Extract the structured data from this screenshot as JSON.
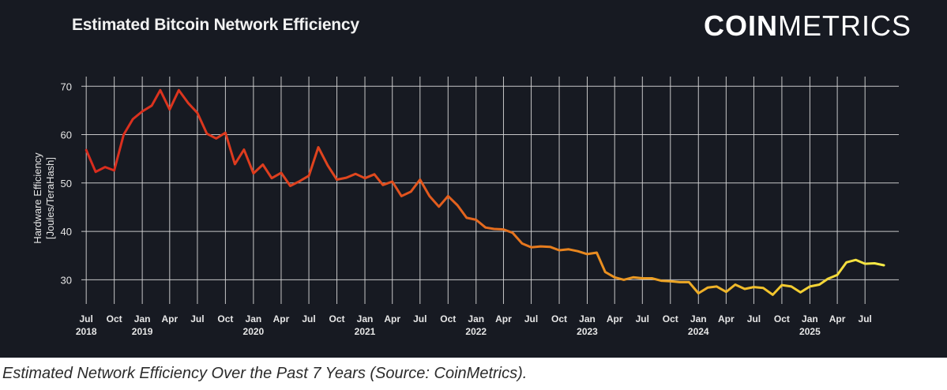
{
  "header": {
    "title": "Estimated Bitcoin Network Efficiency",
    "logo_bold": "COIN",
    "logo_light": "METRICS"
  },
  "caption": "Estimated Network Efficiency Over the Past 7 Years (Source: CoinMetrics).",
  "colors": {
    "background": "#171a22",
    "grid": "#d9d9d9",
    "axis_text": "#e6e6e6",
    "line_gradient": [
      "#d92b1e",
      "#e0481e",
      "#e8851e",
      "#f2c62d",
      "#f6f04a"
    ]
  },
  "chart_data": {
    "type": "line",
    "title": "Estimated Bitcoin Network Efficiency",
    "ylabel": "Hardware Efficiency\n[Joules/TeraHash]",
    "xlabel": "",
    "ylim": [
      25,
      72
    ],
    "xlim": [
      "2018-06-15",
      "2025-10-20"
    ],
    "yticks": [
      30,
      40,
      50,
      60,
      70
    ],
    "grid": true,
    "legend": "none",
    "xticks": [
      {
        "date": "2018-07-01",
        "label": "Jul",
        "year": "2018"
      },
      {
        "date": "2018-10-01",
        "label": "Oct",
        "year": ""
      },
      {
        "date": "2019-01-01",
        "label": "Jan",
        "year": "2019"
      },
      {
        "date": "2019-04-01",
        "label": "Apr",
        "year": ""
      },
      {
        "date": "2019-07-01",
        "label": "Jul",
        "year": ""
      },
      {
        "date": "2019-10-01",
        "label": "Oct",
        "year": ""
      },
      {
        "date": "2020-01-01",
        "label": "Jan",
        "year": "2020"
      },
      {
        "date": "2020-04-01",
        "label": "Apr",
        "year": ""
      },
      {
        "date": "2020-07-01",
        "label": "Jul",
        "year": ""
      },
      {
        "date": "2020-10-01",
        "label": "Oct",
        "year": ""
      },
      {
        "date": "2021-01-01",
        "label": "Jan",
        "year": "2021"
      },
      {
        "date": "2021-04-01",
        "label": "Apr",
        "year": ""
      },
      {
        "date": "2021-07-01",
        "label": "Jul",
        "year": ""
      },
      {
        "date": "2021-10-01",
        "label": "Oct",
        "year": ""
      },
      {
        "date": "2022-01-01",
        "label": "Jan",
        "year": "2022"
      },
      {
        "date": "2022-04-01",
        "label": "Apr",
        "year": ""
      },
      {
        "date": "2022-07-01",
        "label": "Jul",
        "year": ""
      },
      {
        "date": "2022-10-01",
        "label": "Oct",
        "year": ""
      },
      {
        "date": "2023-01-01",
        "label": "Jan",
        "year": "2023"
      },
      {
        "date": "2023-04-01",
        "label": "Apr",
        "year": ""
      },
      {
        "date": "2023-07-01",
        "label": "Jul",
        "year": ""
      },
      {
        "date": "2023-10-01",
        "label": "Oct",
        "year": ""
      },
      {
        "date": "2024-01-01",
        "label": "Jan",
        "year": "2024"
      },
      {
        "date": "2024-04-01",
        "label": "Apr",
        "year": ""
      },
      {
        "date": "2024-07-01",
        "label": "Jul",
        "year": ""
      },
      {
        "date": "2024-10-01",
        "label": "Oct",
        "year": ""
      },
      {
        "date": "2025-01-01",
        "label": "Jan",
        "year": "2025"
      },
      {
        "date": "2025-04-01",
        "label": "Apr",
        "year": ""
      },
      {
        "date": "2025-07-01",
        "label": "Jul",
        "year": ""
      }
    ],
    "series": [
      {
        "points": [
          [
            "2018-07-01",
            56.8
          ],
          [
            "2018-08-01",
            52.3
          ],
          [
            "2018-09-01",
            53.3
          ],
          [
            "2018-10-01",
            52.6
          ],
          [
            "2018-11-01",
            60.0
          ],
          [
            "2018-12-01",
            63.2
          ],
          [
            "2019-01-01",
            64.8
          ],
          [
            "2019-02-01",
            66.0
          ],
          [
            "2019-03-01",
            69.2
          ],
          [
            "2019-04-01",
            65.2
          ],
          [
            "2019-05-01",
            69.2
          ],
          [
            "2019-06-01",
            66.5
          ],
          [
            "2019-07-01",
            64.5
          ],
          [
            "2019-08-01",
            60.2
          ],
          [
            "2019-09-01",
            59.2
          ],
          [
            "2019-10-01",
            60.4
          ],
          [
            "2019-11-01",
            53.9
          ],
          [
            "2019-12-01",
            56.9
          ],
          [
            "2020-01-01",
            52.0
          ],
          [
            "2020-02-01",
            53.8
          ],
          [
            "2020-03-01",
            51.0
          ],
          [
            "2020-04-01",
            52.1
          ],
          [
            "2020-05-01",
            49.4
          ],
          [
            "2020-06-01",
            50.4
          ],
          [
            "2020-07-01",
            51.5
          ],
          [
            "2020-08-01",
            57.4
          ],
          [
            "2020-09-01",
            53.6
          ],
          [
            "2020-10-01",
            50.7
          ],
          [
            "2020-11-01",
            51.1
          ],
          [
            "2020-12-01",
            51.9
          ],
          [
            "2021-01-01",
            51.0
          ],
          [
            "2021-02-01",
            51.8
          ],
          [
            "2021-03-01",
            49.6
          ],
          [
            "2021-04-01",
            50.3
          ],
          [
            "2021-05-01",
            47.3
          ],
          [
            "2021-06-01",
            48.2
          ],
          [
            "2021-07-01",
            50.7
          ],
          [
            "2021-08-01",
            47.3
          ],
          [
            "2021-09-01",
            45.1
          ],
          [
            "2021-10-01",
            47.3
          ],
          [
            "2021-11-01",
            45.4
          ],
          [
            "2021-12-01",
            42.8
          ],
          [
            "2022-01-01",
            42.4
          ],
          [
            "2022-02-01",
            40.8
          ],
          [
            "2022-03-01",
            40.5
          ],
          [
            "2022-04-01",
            40.4
          ],
          [
            "2022-05-01",
            39.7
          ],
          [
            "2022-06-01",
            37.5
          ],
          [
            "2022-07-01",
            36.7
          ],
          [
            "2022-08-01",
            36.9
          ],
          [
            "2022-09-01",
            36.8
          ],
          [
            "2022-10-01",
            36.1
          ],
          [
            "2022-11-01",
            36.3
          ],
          [
            "2022-12-01",
            35.9
          ],
          [
            "2023-01-01",
            35.3
          ],
          [
            "2023-02-01",
            35.6
          ],
          [
            "2023-03-01",
            31.6
          ],
          [
            "2023-04-01",
            30.5
          ],
          [
            "2023-05-01",
            30.0
          ],
          [
            "2023-06-01",
            30.5
          ],
          [
            "2023-07-01",
            30.3
          ],
          [
            "2023-08-01",
            30.3
          ],
          [
            "2023-09-01",
            29.8
          ],
          [
            "2023-10-01",
            29.7
          ],
          [
            "2023-11-01",
            29.5
          ],
          [
            "2023-12-01",
            29.5
          ],
          [
            "2024-01-01",
            27.2
          ],
          [
            "2024-02-01",
            28.4
          ],
          [
            "2024-03-01",
            28.6
          ],
          [
            "2024-04-01",
            27.5
          ],
          [
            "2024-05-01",
            29.0
          ],
          [
            "2024-06-01",
            28.1
          ],
          [
            "2024-07-01",
            28.5
          ],
          [
            "2024-08-01",
            28.3
          ],
          [
            "2024-09-01",
            26.9
          ],
          [
            "2024-10-01",
            28.9
          ],
          [
            "2024-11-01",
            28.6
          ],
          [
            "2024-12-01",
            27.4
          ],
          [
            "2025-01-01",
            28.6
          ],
          [
            "2025-02-01",
            29.0
          ],
          [
            "2025-03-01",
            30.2
          ],
          [
            "2025-04-01",
            31.0
          ],
          [
            "2025-05-01",
            33.6
          ],
          [
            "2025-06-01",
            34.1
          ],
          [
            "2025-07-01",
            33.3
          ],
          [
            "2025-08-01",
            33.4
          ],
          [
            "2025-09-01",
            33.0
          ]
        ]
      }
    ]
  }
}
